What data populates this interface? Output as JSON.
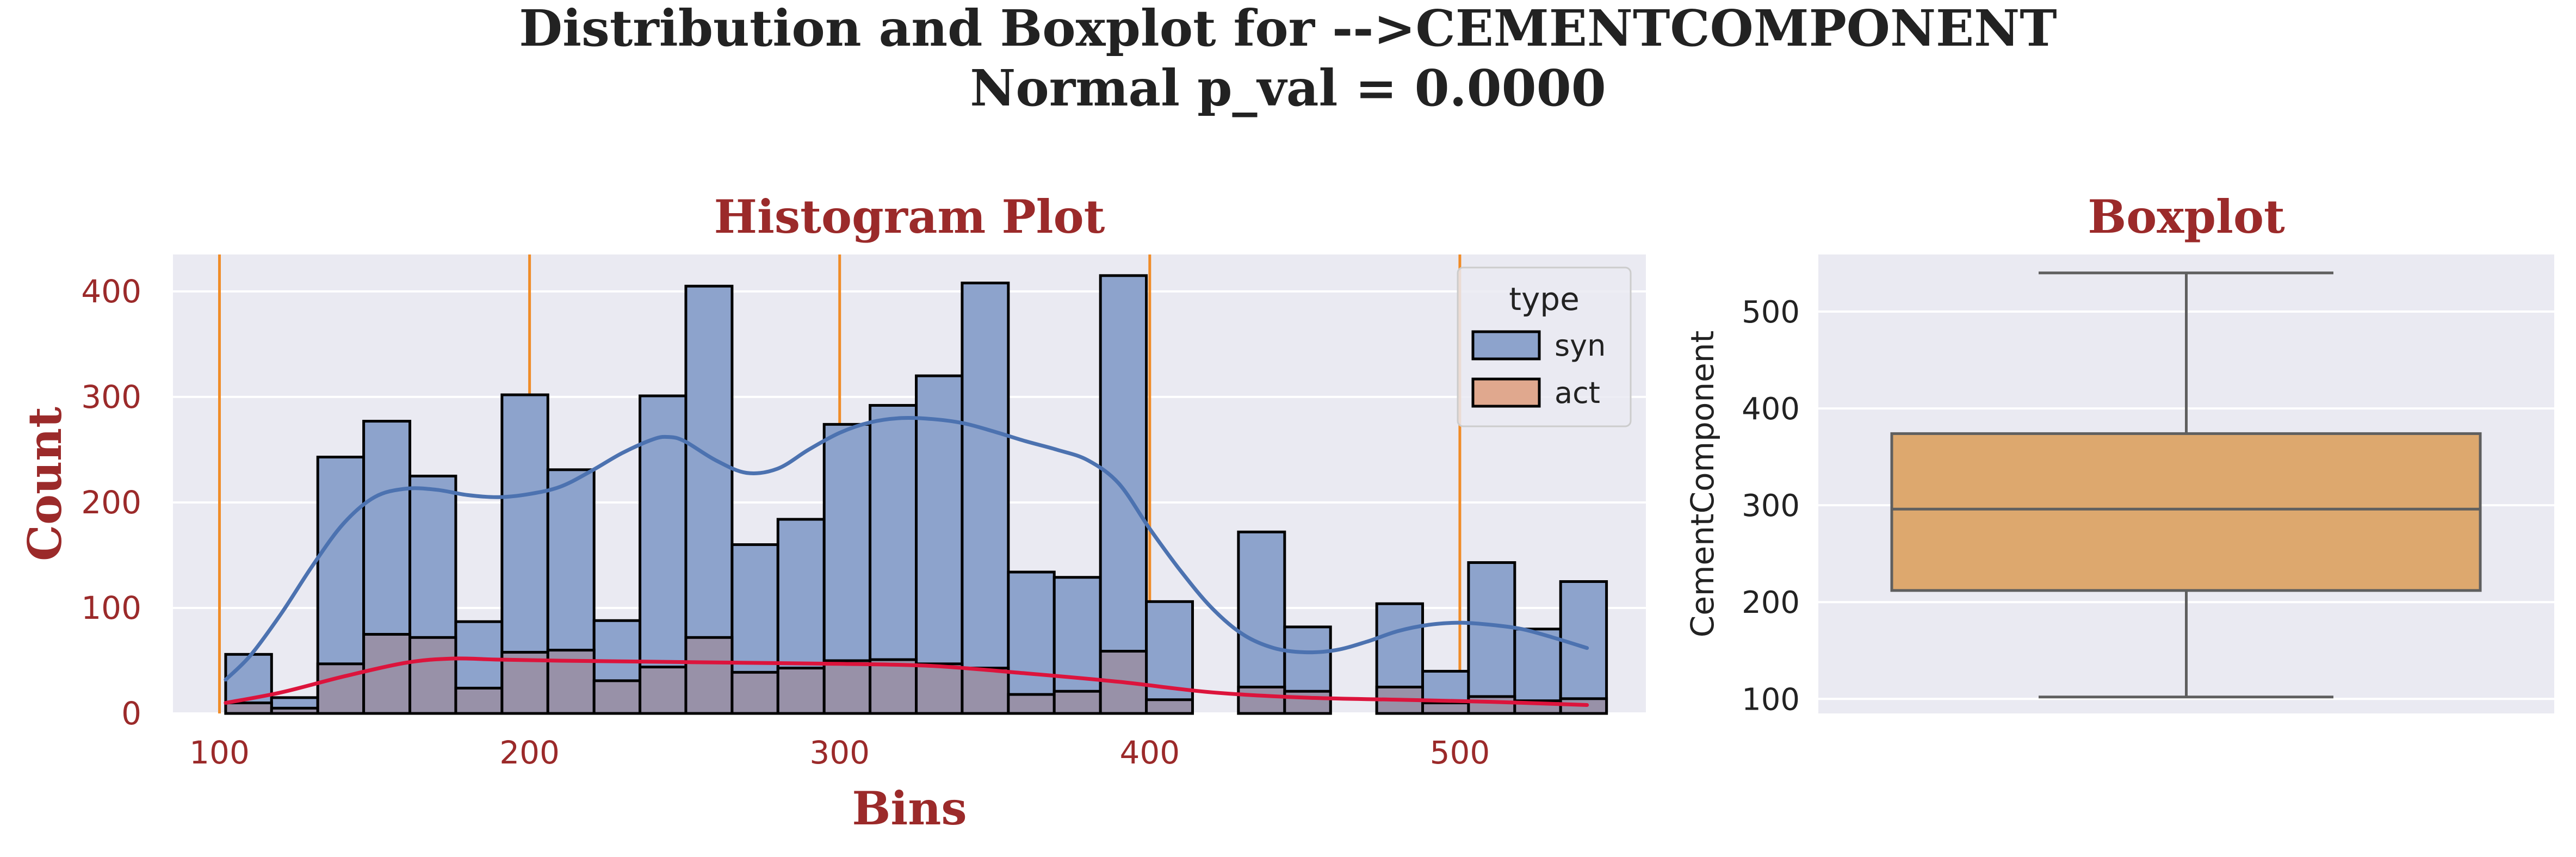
{
  "figure": {
    "title_line1": "Distribution and Boxplot for -->CEMENTCOMPONENT",
    "title_line2": "Normal p_val = 0.0000"
  },
  "colors": {
    "panel_bg": "#eaeaf2",
    "grid": "#ffffff",
    "title_red": "#9b2a2a",
    "syn_fill": "#8da3cc",
    "syn_line": "#4c72b0",
    "act_fill": "#e0a88e",
    "act_line": "#dc143c",
    "overlap_fill": "#9891a8",
    "vline": "#f08c28",
    "box_fill": "#dda86e",
    "box_edge": "#5f5f5f",
    "bar_edge": "#000000"
  },
  "chart_data": [
    {
      "type": "bar",
      "subtype": "histogram_with_kde",
      "title": "Histogram Plot",
      "xlabel": "Bins",
      "ylabel": "Count",
      "xlim": [
        85,
        560
      ],
      "ylim": [
        0,
        435
      ],
      "xticks": [
        100,
        200,
        300,
        400,
        500
      ],
      "yticks": [
        0,
        100,
        200,
        300,
        400
      ],
      "grid": true,
      "bin_edges": [
        102,
        116.8,
        131.7,
        146.5,
        161.4,
        176.2,
        191.1,
        205.9,
        220.8,
        235.6,
        250.4,
        265.3,
        280.1,
        295,
        309.8,
        324.7,
        339.5,
        354.4,
        369.2,
        384.1,
        398.9,
        413.8,
        428.6,
        443.5,
        458.3,
        473.2,
        488,
        502.8,
        517.7,
        532.5,
        547.3
      ],
      "series": [
        {
          "name": "syn",
          "values": [
            56,
            15,
            243,
            277,
            225,
            87,
            302,
            231,
            88,
            301,
            405,
            160,
            184,
            274,
            292,
            320,
            408,
            134,
            129,
            415,
            106,
            0,
            172,
            82,
            0,
            104,
            40,
            143,
            80,
            125
          ]
        },
        {
          "name": "act",
          "values": [
            10,
            5,
            47,
            75,
            72,
            24,
            58,
            60,
            31,
            44,
            72,
            39,
            43,
            50,
            51,
            47,
            43,
            18,
            21,
            59,
            13,
            0,
            25,
            21,
            0,
            25,
            10,
            16,
            12,
            14
          ]
        }
      ],
      "kde": [
        {
          "name": "syn",
          "x": [
            102,
            110,
            120,
            130,
            140,
            150,
            160,
            170,
            180,
            190,
            200,
            210,
            220,
            230,
            240,
            245,
            250,
            260,
            270,
            280,
            290,
            300,
            310,
            320,
            330,
            340,
            350,
            360,
            370,
            380,
            390,
            400,
            410,
            420,
            430,
            440,
            450,
            460,
            470,
            480,
            490,
            500,
            510,
            520,
            530,
            541
          ],
          "y": [
            32,
            55,
            95,
            140,
            180,
            205,
            213,
            212,
            207,
            205,
            208,
            215,
            230,
            247,
            260,
            262,
            258,
            240,
            228,
            232,
            250,
            266,
            276,
            280,
            279,
            275,
            267,
            258,
            250,
            240,
            218,
            175,
            135,
            100,
            75,
            62,
            58,
            60,
            68,
            78,
            84,
            86,
            84,
            80,
            72,
            62
          ]
        },
        {
          "name": "act",
          "x": [
            102,
            120,
            140,
            160,
            175,
            190,
            210,
            240,
            270,
            300,
            330,
            360,
            390,
            420,
            450,
            480,
            510,
            541
          ],
          "y": [
            10,
            20,
            35,
            48,
            52,
            51,
            50,
            49,
            48,
            47,
            45,
            38,
            30,
            20,
            15,
            13,
            11,
            8
          ]
        }
      ],
      "vlines": [
        100,
        200,
        300,
        400,
        500
      ],
      "legend": {
        "title": "type",
        "entries": [
          "syn",
          "act"
        ],
        "position": "upper right"
      }
    },
    {
      "type": "box",
      "title": "Boxplot",
      "ylabel": "CementComponent",
      "ylim": [
        85,
        559
      ],
      "yticks": [
        100,
        200,
        300,
        400,
        500
      ],
      "grid": true,
      "stats": {
        "min": 102,
        "q1": 212,
        "median": 296,
        "q3": 374,
        "max": 540
      }
    }
  ]
}
